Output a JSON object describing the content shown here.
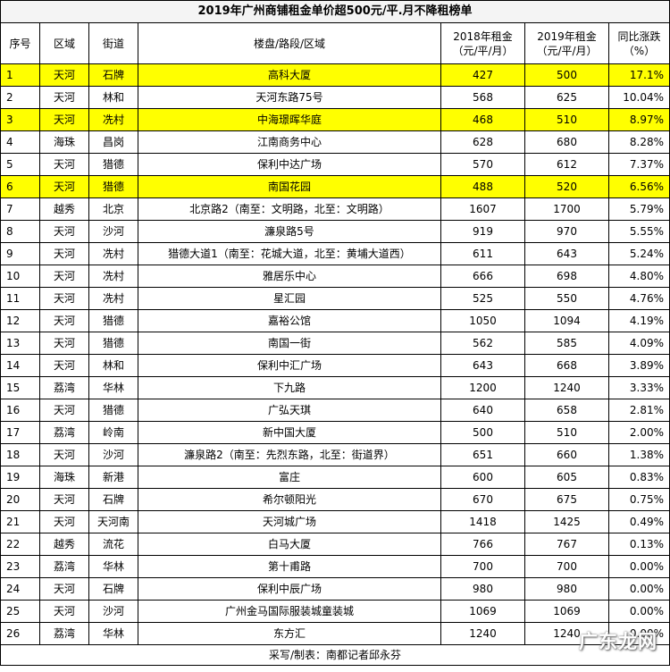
{
  "title": "2019年广州商铺租金单价超500元/平.月不降租榜单",
  "headers": {
    "idx": "序号",
    "district": "区域",
    "street": "街道",
    "property": "楼盘/路段/区域",
    "rent2018": "2018年租金\n（元/平/月）",
    "rent2019": "2019年租金\n（元/平/月）",
    "change": "同比涨跌\n（%）"
  },
  "rows": [
    {
      "idx": "1",
      "district": "天河",
      "street": "石牌",
      "property": "高科大厦",
      "rent2018": "427",
      "rent2019": "500",
      "change": "17.1%",
      "highlight": true
    },
    {
      "idx": "2",
      "district": "天河",
      "street": "林和",
      "property": "天河东路75号",
      "rent2018": "568",
      "rent2019": "625",
      "change": "10.04%",
      "highlight": false
    },
    {
      "idx": "3",
      "district": "天河",
      "street": "冼村",
      "property": "中海璟晖华庭",
      "rent2018": "468",
      "rent2019": "510",
      "change": "8.97%",
      "highlight": true
    },
    {
      "idx": "4",
      "district": "海珠",
      "street": "昌岗",
      "property": "江南商务中心",
      "rent2018": "628",
      "rent2019": "680",
      "change": "8.28%",
      "highlight": false
    },
    {
      "idx": "5",
      "district": "天河",
      "street": "猎德",
      "property": "保利中达广场",
      "rent2018": "570",
      "rent2019": "612",
      "change": "7.37%",
      "highlight": false
    },
    {
      "idx": "6",
      "district": "天河",
      "street": "猎德",
      "property": "南国花园",
      "rent2018": "488",
      "rent2019": "520",
      "change": "6.56%",
      "highlight": true
    },
    {
      "idx": "7",
      "district": "越秀",
      "street": "北京",
      "property": "北京路2（南至：文明路，北至：文明路）",
      "rent2018": "1607",
      "rent2019": "1700",
      "change": "5.79%",
      "highlight": false
    },
    {
      "idx": "8",
      "district": "天河",
      "street": "沙河",
      "property": "濂泉路5号",
      "rent2018": "919",
      "rent2019": "970",
      "change": "5.55%",
      "highlight": false
    },
    {
      "idx": "9",
      "district": "天河",
      "street": "冼村",
      "property": "猎德大道1（南至：花城大道，北至：黄埔大道西）",
      "rent2018": "611",
      "rent2019": "643",
      "change": "5.24%",
      "highlight": false
    },
    {
      "idx": "10",
      "district": "天河",
      "street": "冼村",
      "property": "雅居乐中心",
      "rent2018": "666",
      "rent2019": "698",
      "change": "4.80%",
      "highlight": false
    },
    {
      "idx": "11",
      "district": "天河",
      "street": "冼村",
      "property": "星汇园",
      "rent2018": "525",
      "rent2019": "550",
      "change": "4.76%",
      "highlight": false
    },
    {
      "idx": "12",
      "district": "天河",
      "street": "猎德",
      "property": "嘉裕公馆",
      "rent2018": "1050",
      "rent2019": "1094",
      "change": "4.19%",
      "highlight": false
    },
    {
      "idx": "13",
      "district": "天河",
      "street": "猎德",
      "property": "南国一街",
      "rent2018": "562",
      "rent2019": "585",
      "change": "4.09%",
      "highlight": false
    },
    {
      "idx": "14",
      "district": "天河",
      "street": "林和",
      "property": "保利中汇广场",
      "rent2018": "643",
      "rent2019": "668",
      "change": "3.89%",
      "highlight": false
    },
    {
      "idx": "15",
      "district": "荔湾",
      "street": "华林",
      "property": "下九路",
      "rent2018": "1200",
      "rent2019": "1240",
      "change": "3.33%",
      "highlight": false
    },
    {
      "idx": "16",
      "district": "天河",
      "street": "猎德",
      "property": "广弘天琪",
      "rent2018": "640",
      "rent2019": "658",
      "change": "2.81%",
      "highlight": false
    },
    {
      "idx": "17",
      "district": "荔湾",
      "street": "岭南",
      "property": "新中国大厦",
      "rent2018": "500",
      "rent2019": "510",
      "change": "2.00%",
      "highlight": false
    },
    {
      "idx": "18",
      "district": "天河",
      "street": "沙河",
      "property": "濂泉路2（南至：先烈东路，北至：街道界）",
      "rent2018": "651",
      "rent2019": "660",
      "change": "1.38%",
      "highlight": false
    },
    {
      "idx": "19",
      "district": "海珠",
      "street": "新港",
      "property": "富庄",
      "rent2018": "600",
      "rent2019": "605",
      "change": "0.83%",
      "highlight": false
    },
    {
      "idx": "20",
      "district": "天河",
      "street": "石牌",
      "property": "希尔顿阳光",
      "rent2018": "670",
      "rent2019": "675",
      "change": "0.75%",
      "highlight": false
    },
    {
      "idx": "21",
      "district": "天河",
      "street": "天河南",
      "property": "天河城广场",
      "rent2018": "1418",
      "rent2019": "1425",
      "change": "0.49%",
      "highlight": false
    },
    {
      "idx": "22",
      "district": "越秀",
      "street": "流花",
      "property": "白马大厦",
      "rent2018": "766",
      "rent2019": "767",
      "change": "0.13%",
      "highlight": false
    },
    {
      "idx": "23",
      "district": "荔湾",
      "street": "华林",
      "property": "第十甫路",
      "rent2018": "700",
      "rent2019": "700",
      "change": "0.00%",
      "highlight": false
    },
    {
      "idx": "24",
      "district": "天河",
      "street": "石牌",
      "property": "保利中辰广场",
      "rent2018": "980",
      "rent2019": "980",
      "change": "0.00%",
      "highlight": false
    },
    {
      "idx": "25",
      "district": "天河",
      "street": "沙河",
      "property": "广州金马国际服装城童装城",
      "rent2018": "1069",
      "rent2019": "1069",
      "change": "0.00%",
      "highlight": false
    },
    {
      "idx": "26",
      "district": "荔湾",
      "street": "华林",
      "property": "东方汇",
      "rent2018": "1240",
      "rent2019": "1240",
      "change": "0.00%",
      "highlight": false
    }
  ],
  "footer": "采写/制表：南都记者邱永芬",
  "watermark": "广东龙网",
  "colors": {
    "highlight": "#ffff00",
    "border": "#000000",
    "title_bg": "#f4f4f4"
  }
}
